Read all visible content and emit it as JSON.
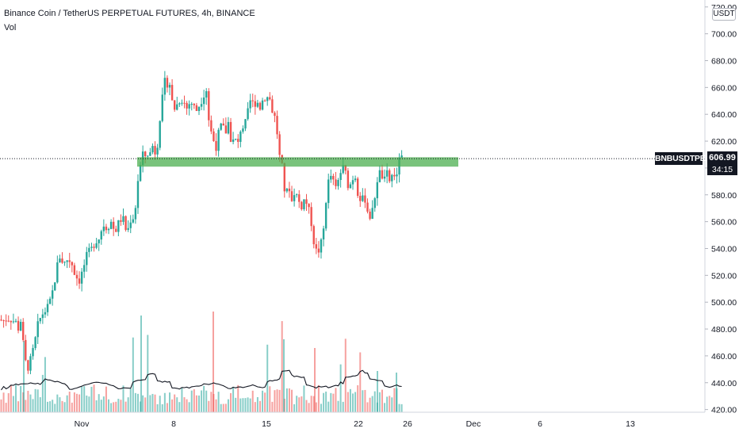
{
  "header": {
    "title": "Binance Coin / TetherUS PERPETUAL FUTURES, 4h, BINANCE",
    "vol_label": "Vol"
  },
  "price_axis": {
    "currency": "USDT",
    "symbol": "BNBUSDTPERP",
    "last_price": "606.99",
    "countdown": "34:15"
  },
  "chart_data": {
    "type": "candlestick",
    "colors": {
      "up": "#26a69a",
      "down": "#ef5350",
      "zone": "#4caf50",
      "vol_ma": "#131722"
    },
    "ylim": [
      418,
      724
    ],
    "y_ticks": [
      "420.00",
      "440.00",
      "460.00",
      "480.00",
      "500.00",
      "520.00",
      "540.00",
      "560.00",
      "580.00",
      "600.00",
      "620.00",
      "640.00",
      "660.00",
      "680.00",
      "700.00",
      "720.00"
    ],
    "x_tick_labels": [
      "Nov",
      "8",
      "15",
      "22",
      "26",
      "Dec",
      "6",
      "13"
    ],
    "support_zone": [
      601,
      608
    ],
    "last_price": 606.99,
    "price_path": [
      [
        0,
        487
      ],
      [
        4,
        486
      ],
      [
        9,
        488
      ],
      [
        14,
        487
      ],
      [
        20,
        485
      ],
      [
        24,
        479
      ],
      [
        26,
        487
      ],
      [
        28,
        476
      ],
      [
        31,
        460
      ],
      [
        34,
        449
      ],
      [
        38,
        456
      ],
      [
        43,
        467
      ],
      [
        48,
        484
      ],
      [
        53,
        491
      ],
      [
        58,
        494
      ],
      [
        63,
        500
      ],
      [
        68,
        512
      ],
      [
        72,
        527
      ],
      [
        76,
        535
      ],
      [
        80,
        528
      ],
      [
        85,
        532
      ],
      [
        90,
        530
      ],
      [
        95,
        520
      ],
      [
        100,
        516
      ],
      [
        105,
        525
      ],
      [
        110,
        536
      ],
      [
        116,
        540
      ],
      [
        120,
        545
      ],
      [
        125,
        548
      ],
      [
        130,
        558
      ],
      [
        135,
        555
      ],
      [
        140,
        560
      ],
      [
        145,
        552
      ],
      [
        150,
        560
      ],
      [
        155,
        563
      ],
      [
        160,
        551
      ],
      [
        165,
        562
      ],
      [
        170,
        564
      ],
      [
        173,
        588
      ],
      [
        176,
        597
      ],
      [
        179,
        610
      ],
      [
        183,
        609
      ],
      [
        187,
        611
      ],
      [
        190,
        611
      ],
      [
        194,
        620
      ],
      [
        197,
        604
      ],
      [
        200,
        630
      ],
      [
        203,
        643
      ],
      [
        206,
        658
      ],
      [
        209,
        668
      ],
      [
        212,
        660
      ],
      [
        215,
        664
      ],
      [
        218,
        643
      ],
      [
        221,
        645
      ],
      [
        224,
        648
      ],
      [
        228,
        652
      ],
      [
        232,
        649
      ],
      [
        236,
        644
      ],
      [
        240,
        650
      ],
      [
        244,
        646
      ],
      [
        248,
        643
      ],
      [
        252,
        648
      ],
      [
        256,
        653
      ],
      [
        260,
        660
      ],
      [
        264,
        631
      ],
      [
        268,
        624
      ],
      [
        272,
        614
      ],
      [
        276,
        627
      ],
      [
        280,
        633
      ],
      [
        284,
        625
      ],
      [
        288,
        634
      ],
      [
        292,
        618
      ],
      [
        296,
        622
      ],
      [
        300,
        617
      ],
      [
        304,
        631
      ],
      [
        308,
        630
      ],
      [
        312,
        640
      ],
      [
        316,
        651
      ],
      [
        320,
        647
      ],
      [
        324,
        650
      ],
      [
        328,
        645
      ],
      [
        332,
        652
      ],
      [
        336,
        653
      ],
      [
        340,
        652
      ],
      [
        344,
        641
      ],
      [
        348,
        636
      ],
      [
        352,
        610
      ],
      [
        356,
        600
      ],
      [
        360,
        577
      ],
      [
        364,
        588
      ],
      [
        368,
        575
      ],
      [
        372,
        584
      ],
      [
        376,
        576
      ],
      [
        380,
        571
      ],
      [
        384,
        577
      ],
      [
        388,
        572
      ],
      [
        392,
        562
      ],
      [
        396,
        544
      ],
      [
        400,
        536
      ],
      [
        404,
        541
      ],
      [
        408,
        554
      ],
      [
        412,
        582
      ],
      [
        416,
        596
      ],
      [
        420,
        590
      ],
      [
        424,
        584
      ],
      [
        428,
        594
      ],
      [
        432,
        601
      ],
      [
        436,
        596
      ],
      [
        440,
        584
      ],
      [
        444,
        592
      ],
      [
        448,
        594
      ],
      [
        452,
        579
      ],
      [
        456,
        576
      ],
      [
        460,
        578
      ],
      [
        464,
        567
      ],
      [
        468,
        562
      ],
      [
        472,
        576
      ],
      [
        476,
        592
      ],
      [
        480,
        598
      ],
      [
        484,
        589
      ],
      [
        488,
        596
      ],
      [
        492,
        589
      ],
      [
        496,
        598
      ],
      [
        500,
        590
      ],
      [
        504,
        612
      ],
      [
        507,
        606
      ]
    ]
  }
}
